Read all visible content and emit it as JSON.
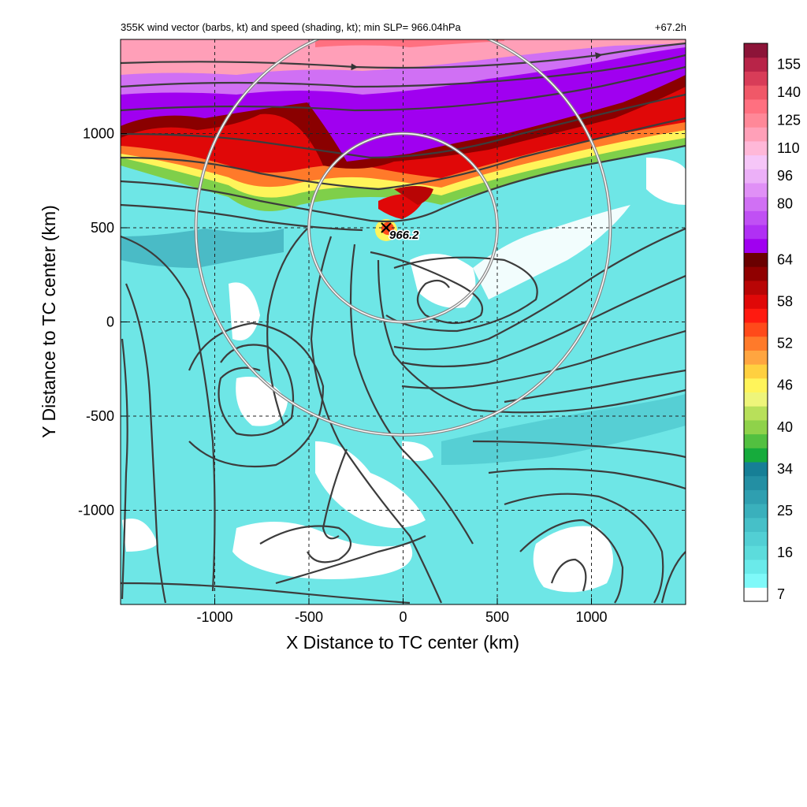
{
  "chart_data": {
    "type": "heatmap",
    "title": "355K wind vector (barbs, kt) and speed (shading, kt); min SLP= 966.04hPa",
    "forecast_time": "+67.2h",
    "xlabel": "X Distance to TC center (km)",
    "ylabel": "Y Distance to TC center (km)",
    "xlim": [
      -1500,
      1500
    ],
    "ylim": [
      -1500,
      1500
    ],
    "x_ticks": [
      -1000,
      -500,
      0,
      500,
      1000
    ],
    "y_ticks": [
      -1000,
      -500,
      0,
      500,
      1000
    ],
    "grid": true,
    "colorbar": {
      "label_values": [
        "155",
        "140",
        "125",
        "110",
        "96",
        "80",
        "64",
        "58",
        "52",
        "46",
        "40",
        "34",
        "25",
        "16",
        "7"
      ],
      "levels": [
        {
          "value": 7,
          "color": "#ffffff"
        },
        {
          "value": 10,
          "color": "#7ff9f9"
        },
        {
          "value": 13,
          "color": "#6aeaea"
        },
        {
          "value": 16,
          "color": "#5cdcdc"
        },
        {
          "value": 19,
          "color": "#52cfd4"
        },
        {
          "value": 22,
          "color": "#46c0c8"
        },
        {
          "value": 25,
          "color": "#3ab0bc"
        },
        {
          "value": 28,
          "color": "#2f9fb0"
        },
        {
          "value": 31,
          "color": "#238fa3"
        },
        {
          "value": 34,
          "color": "#167f96"
        },
        {
          "value": 36,
          "color": "#16ab3c"
        },
        {
          "value": 38,
          "color": "#52c040"
        },
        {
          "value": 40,
          "color": "#8fd24a"
        },
        {
          "value": 42,
          "color": "#b8e05a"
        },
        {
          "value": 44,
          "color": "#eef57a"
        },
        {
          "value": 46,
          "color": "#fff45a"
        },
        {
          "value": 48,
          "color": "#ffd040"
        },
        {
          "value": 50,
          "color": "#ffa540"
        },
        {
          "value": 52,
          "color": "#ff7a2a"
        },
        {
          "value": 54,
          "color": "#ff4a1a"
        },
        {
          "value": 56,
          "color": "#ff1a10"
        },
        {
          "value": 58,
          "color": "#e00808"
        },
        {
          "value": 60,
          "color": "#b80505"
        },
        {
          "value": 62,
          "color": "#900000"
        },
        {
          "value": 64,
          "color": "#6a0000"
        },
        {
          "value": 68,
          "color": "#a000f0"
        },
        {
          "value": 72,
          "color": "#b030f4"
        },
        {
          "value": 76,
          "color": "#c050f4"
        },
        {
          "value": 80,
          "color": "#d070f4"
        },
        {
          "value": 88,
          "color": "#e090f6"
        },
        {
          "value": 96,
          "color": "#ecb0f8"
        },
        {
          "value": 103,
          "color": "#f6c6f8"
        },
        {
          "value": 110,
          "color": "#ffb8d8"
        },
        {
          "value": 118,
          "color": "#ffa0b8"
        },
        {
          "value": 125,
          "color": "#ff8898"
        },
        {
          "value": 132,
          "color": "#ff7080"
        },
        {
          "value": 140,
          "color": "#f05868"
        },
        {
          "value": 148,
          "color": "#d83c58"
        },
        {
          "value": 155,
          "color": "#b82448"
        },
        {
          "value": 162,
          "color": "#8c1438"
        }
      ]
    },
    "center_marker": {
      "x": -90,
      "y": 500,
      "label": "966.2"
    },
    "range_rings": [
      {
        "center_x": 0,
        "center_y": 500,
        "radius_km": 500
      },
      {
        "center_x": 0,
        "center_y": 500,
        "radius_km": 1100
      }
    ]
  }
}
